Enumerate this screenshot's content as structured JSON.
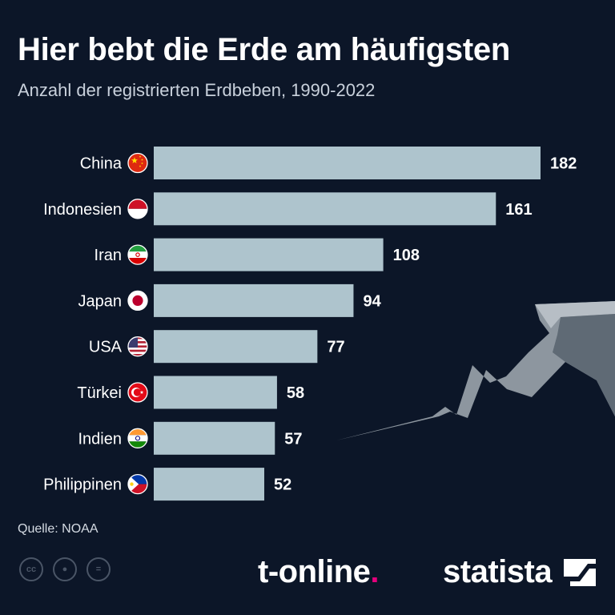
{
  "header": {
    "title": "Hier bebt die Erde am häufigsten",
    "subtitle": "Anzahl der registrierten Erdbeben, 1990-2022"
  },
  "footer": {
    "source": "Quelle: NOAA",
    "brand_left": "t-online",
    "brand_left_dot": ".",
    "brand_right": "statista",
    "license_icons": [
      "creative-commons-icon",
      "attribution-icon",
      "no-derivatives-icon"
    ]
  },
  "colors": {
    "background": "#0c1628",
    "bar": "#aec4cd",
    "text": "#ffffff",
    "accent": "#e5007d"
  },
  "chart_data": {
    "type": "bar",
    "orientation": "horizontal",
    "title": "Hier bebt die Erde am häufigsten",
    "subtitle": "Anzahl der registrierten Erdbeben, 1990-2022",
    "categories": [
      "China",
      "Indonesien",
      "Iran",
      "Japan",
      "USA",
      "Türkei",
      "Indien",
      "Philippinen"
    ],
    "values": [
      182,
      161,
      108,
      94,
      77,
      58,
      57,
      52
    ],
    "flags": [
      "china-flag-icon",
      "indonesia-flag-icon",
      "iran-flag-icon",
      "japan-flag-icon",
      "usa-flag-icon",
      "turkey-flag-icon",
      "india-flag-icon",
      "philippines-flag-icon"
    ],
    "xlim": [
      0,
      182
    ],
    "grid": false,
    "data_labels": true
  }
}
